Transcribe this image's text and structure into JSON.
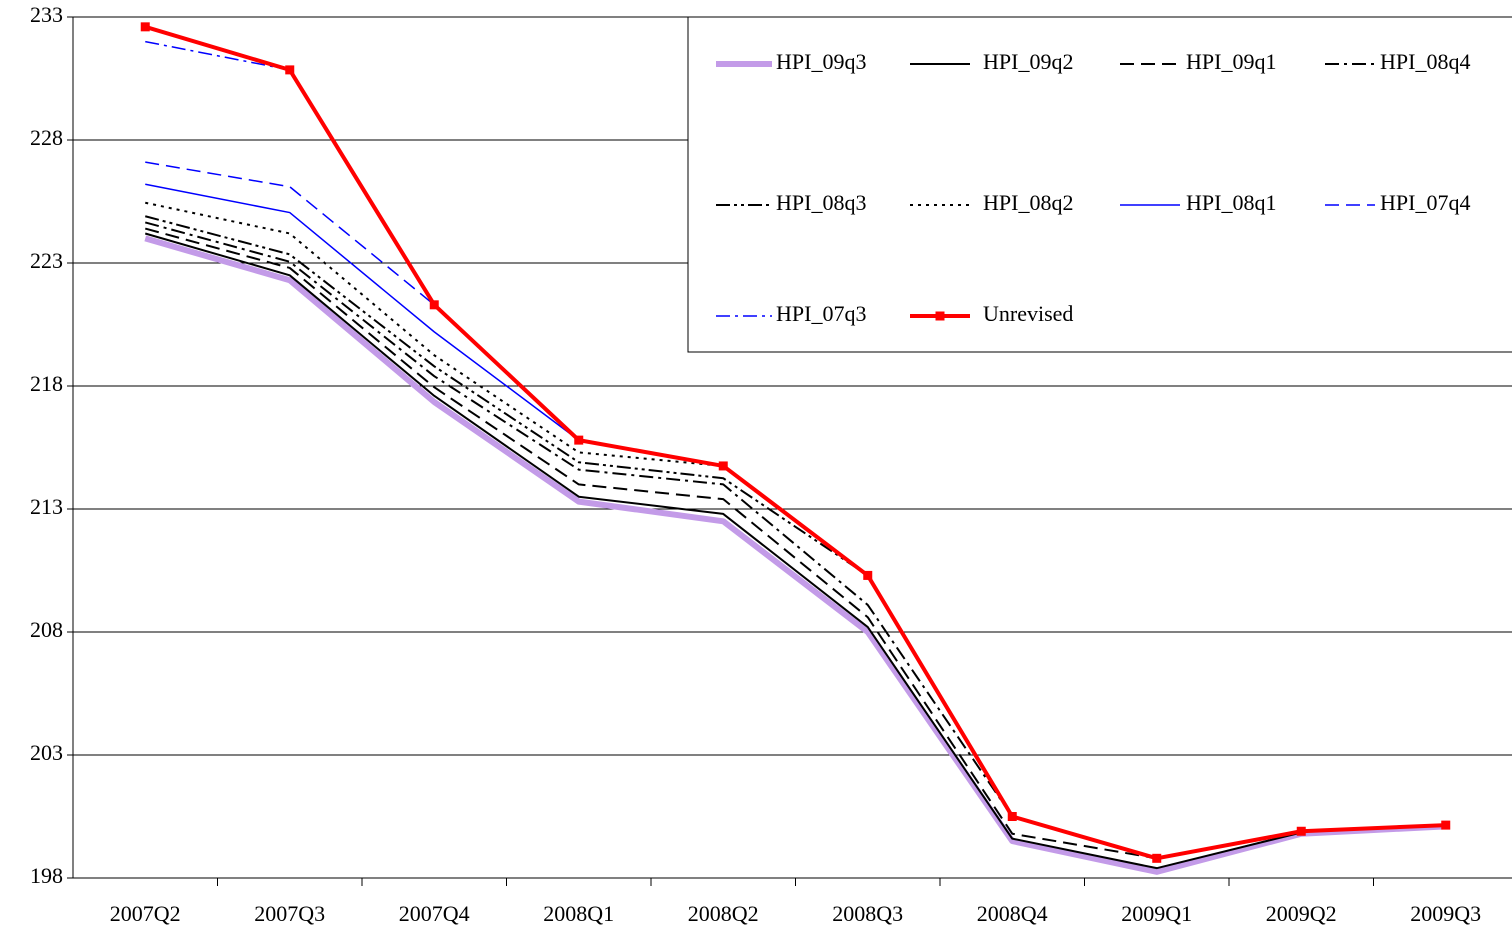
{
  "chart_data": {
    "type": "line",
    "categories": [
      "2007Q2",
      "2007Q3",
      "2007Q4",
      "2008Q1",
      "2008Q2",
      "2008Q3",
      "2008Q4",
      "2009Q1",
      "2009Q2",
      "2009Q3"
    ],
    "ylim": [
      198,
      233
    ],
    "yticks": [
      198,
      203,
      208,
      213,
      218,
      223,
      228,
      233
    ],
    "grid": true,
    "legend": "top-right",
    "series": [
      {
        "name": "HPI_09q3",
        "color": "#c39be8",
        "width": 6,
        "dash": "none",
        "values": [
          224.0,
          222.3,
          217.35,
          213.3,
          212.5,
          208.0,
          199.5,
          198.25,
          199.8,
          200.1
        ]
      },
      {
        "name": "HPI_09q2",
        "color": "#000000",
        "width": 2,
        "dash": "none",
        "values": [
          224.2,
          222.5,
          217.6,
          213.5,
          212.8,
          208.2,
          199.6,
          198.4,
          199.85,
          null
        ]
      },
      {
        "name": "HPI_09q1",
        "color": "#000000",
        "width": 2,
        "dash": "14,7",
        "values": [
          224.4,
          222.8,
          217.95,
          214.0,
          213.4,
          208.6,
          199.8,
          198.8,
          null,
          null
        ]
      },
      {
        "name": "HPI_08q4",
        "color": "#000000",
        "width": 2,
        "dash": "14,5,3,5",
        "values": [
          224.65,
          223.05,
          218.4,
          214.6,
          214.0,
          209.1,
          200.5,
          null,
          null,
          null
        ]
      },
      {
        "name": "HPI_08q3",
        "color": "#000000",
        "width": 2,
        "dash": "14,4,3,4,3,4",
        "values": [
          224.9,
          223.35,
          218.8,
          214.9,
          214.25,
          210.3,
          null,
          null,
          null,
          null
        ]
      },
      {
        "name": "HPI_08q2",
        "color": "#000000",
        "width": 2,
        "dash": "3,5",
        "values": [
          225.45,
          224.2,
          219.25,
          215.3,
          214.75,
          null,
          null,
          null,
          null,
          null
        ]
      },
      {
        "name": "HPI_08q1",
        "color": "#0000ff",
        "width": 1.5,
        "dash": "none",
        "values": [
          226.2,
          225.05,
          220.2,
          215.8,
          null,
          null,
          null,
          null,
          null,
          null
        ]
      },
      {
        "name": "HPI_07q4",
        "color": "#0000ff",
        "width": 1.5,
        "dash": "14,7",
        "values": [
          227.1,
          226.1,
          221.3,
          null,
          null,
          null,
          null,
          null,
          null,
          null
        ]
      },
      {
        "name": "HPI_07q3",
        "color": "#0000ff",
        "width": 1.5,
        "dash": "14,5,3,5",
        "values": [
          232.0,
          230.85,
          null,
          null,
          null,
          null,
          null,
          null,
          null,
          null
        ]
      },
      {
        "name": "Unrevised",
        "color": "#ff0000",
        "width": 4,
        "dash": "none",
        "marker": "square",
        "values": [
          232.6,
          230.85,
          221.3,
          215.8,
          214.75,
          210.3,
          200.5,
          198.8,
          199.9,
          200.15
        ]
      }
    ]
  }
}
